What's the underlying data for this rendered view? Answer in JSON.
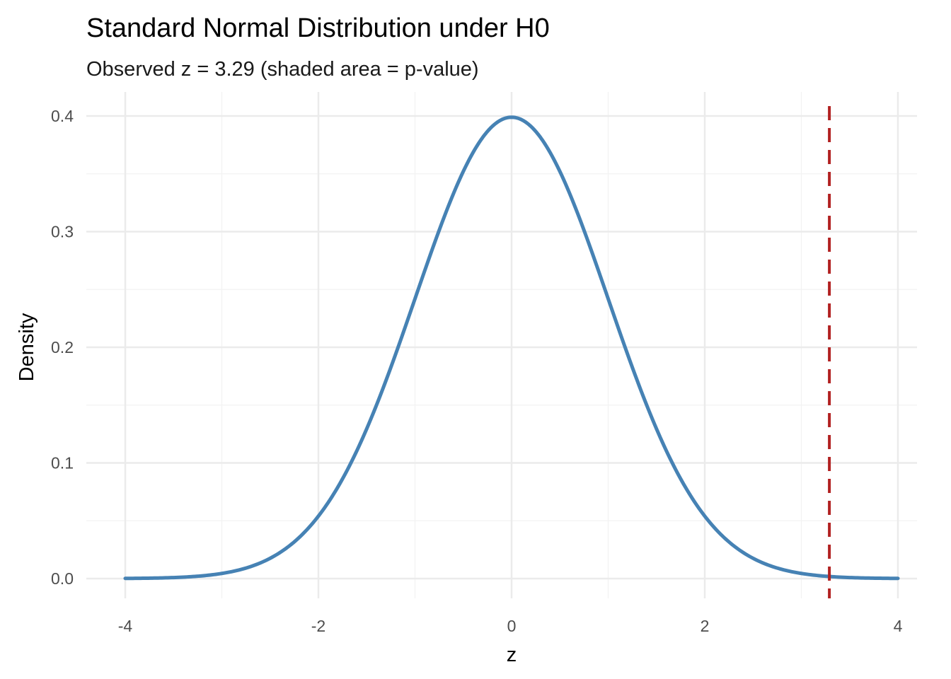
{
  "chart_data": {
    "type": "line",
    "title": "Standard Normal Distribution under H0",
    "subtitle": "Observed z = 3.29 (shaded area = p-value)",
    "xlabel": "z",
    "ylabel": "Density",
    "xlim": [
      -4,
      4
    ],
    "ylim": [
      0,
      0.4
    ],
    "x_ticks": [
      -4,
      -2,
      0,
      2,
      4
    ],
    "x_tick_labels": [
      "-4",
      "-2",
      "0",
      "2",
      "4"
    ],
    "y_ticks": [
      0.0,
      0.1,
      0.2,
      0.3,
      0.4
    ],
    "y_tick_labels": [
      "0.0",
      "0.1",
      "0.2",
      "0.3",
      "0.4"
    ],
    "grid": true,
    "legend": "none",
    "series": [
      {
        "distribution": "normal",
        "mean": 0,
        "sd": 1,
        "color": "#4682B4",
        "x": [
          -4.0,
          -3.5,
          -3.0,
          -2.5,
          -2.0,
          -1.5,
          -1.0,
          -0.5,
          0.0,
          0.5,
          1.0,
          1.5,
          2.0,
          2.5,
          3.0,
          3.5,
          4.0
        ],
        "y": [
          0.0001,
          0.0009,
          0.0044,
          0.0175,
          0.054,
          0.1295,
          0.242,
          0.3521,
          0.3989,
          0.3521,
          0.242,
          0.1295,
          0.054,
          0.0175,
          0.0044,
          0.0009,
          0.0001
        ]
      }
    ],
    "reference_lines": [
      {
        "x": 3.29,
        "style": "dashed",
        "color": "#B22222"
      }
    ]
  }
}
